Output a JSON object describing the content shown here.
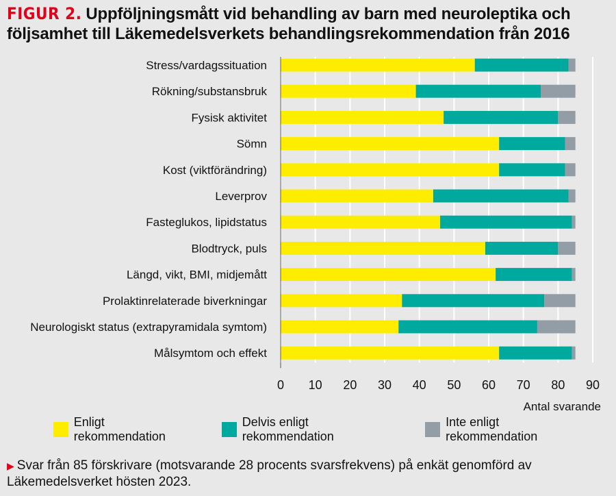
{
  "figure": {
    "label": "FIGUR 2.",
    "title": "Uppföljningsmått vid behandling av barn med neuroleptika och följsamhet till Läkemedelsverkets behandlingsrekommendation från 2016"
  },
  "colors": {
    "enligt": "#ffed00",
    "delvis": "#00a99d",
    "inte": "#939da5",
    "accent": "#e2001a"
  },
  "chart_data": {
    "type": "bar",
    "orientation": "horizontal",
    "stacked": true,
    "categories": [
      "Stress/vardagssituation",
      "Rökning/substansbruk",
      "Fysisk aktivitet",
      "Sömn",
      "Kost (viktförändring)",
      "Leverprov",
      "Fasteglukos, lipidstatus",
      "Blodtryck, puls",
      "Längd, vikt, BMI, midjemått",
      "Prolaktinrelaterade biverkningar",
      "Neurologiskt status (extrapyramidala symtom)",
      "Målsymtom och effekt"
    ],
    "series": [
      {
        "name": "Enligt rekommendation",
        "values": [
          56,
          39,
          47,
          63,
          63,
          44,
          46,
          59,
          62,
          35,
          34,
          63
        ]
      },
      {
        "name": "Delvis enligt rekommendation",
        "values": [
          27,
          36,
          33,
          19,
          19,
          39,
          38,
          21,
          22,
          41,
          40,
          21
        ]
      },
      {
        "name": "Inte enligt rekommendation",
        "values": [
          2,
          10,
          5,
          3,
          3,
          2,
          1,
          5,
          1,
          9,
          11,
          1
        ]
      }
    ],
    "xlabel": "Antal svarande",
    "xlim": [
      0,
      90
    ],
    "xticks": [
      0,
      10,
      20,
      30,
      40,
      50,
      60,
      70,
      80,
      90
    ],
    "grid": true
  },
  "note": {
    "text": "Svar från 85 förskrivare (motsvarande 28 procents svarsfrekvens) på enkät genomförd av Läkemedelsverket hösten 2023."
  }
}
